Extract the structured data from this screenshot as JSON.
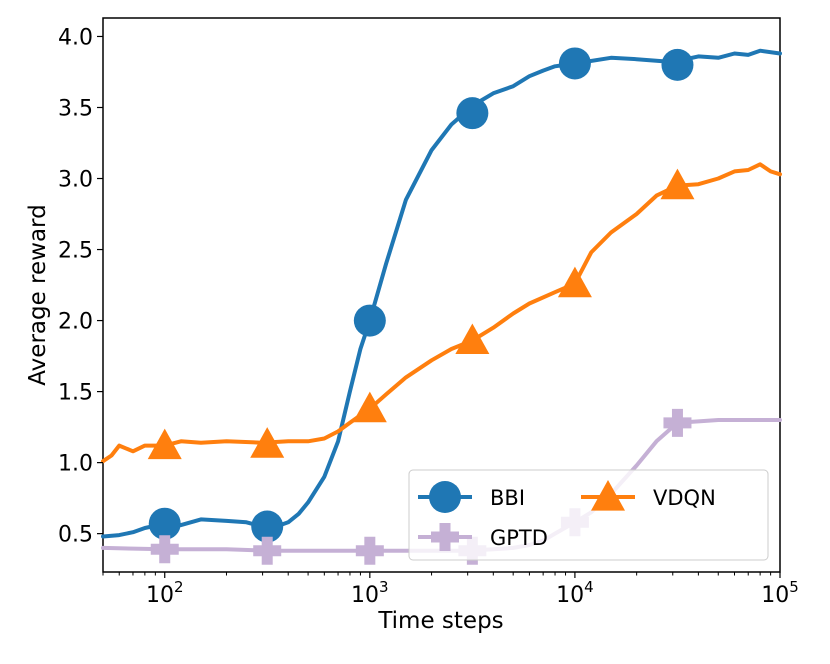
{
  "chart_data": {
    "type": "line",
    "xscale": "log",
    "xlabel": "Time steps",
    "ylabel": "Average reward",
    "xlim": [
      50,
      100000
    ],
    "ylim": [
      0.23,
      4.13
    ],
    "x_ticks": [
      {
        "value": 100,
        "base": "10",
        "exp": "2"
      },
      {
        "value": 1000,
        "base": "10",
        "exp": "3"
      },
      {
        "value": 10000,
        "base": "10",
        "exp": "4"
      },
      {
        "value": 100000,
        "base": "10",
        "exp": "5"
      }
    ],
    "y_ticks": [
      {
        "value": 0.5,
        "label": "0.5"
      },
      {
        "value": 1.0,
        "label": "1.0"
      },
      {
        "value": 1.5,
        "label": "1.5"
      },
      {
        "value": 2.0,
        "label": "2.0"
      },
      {
        "value": 2.5,
        "label": "2.5"
      },
      {
        "value": 3.0,
        "label": "3.0"
      },
      {
        "value": 3.5,
        "label": "3.5"
      },
      {
        "value": 4.0,
        "label": "4.0"
      }
    ],
    "legend_position": "bottom-right",
    "series": [
      {
        "name": "BBI",
        "color": "#1f77b4",
        "marker": "circle",
        "x": [
          50,
          60,
          70,
          80,
          100,
          120,
          150,
          200,
          250,
          300,
          350,
          400,
          450,
          500,
          600,
          700,
          800,
          900,
          1000,
          1200,
          1500,
          2000,
          2500,
          3000,
          3500,
          4000,
          5000,
          6000,
          7000,
          8000,
          10000,
          15000,
          20000,
          30000,
          40000,
          50000,
          60000,
          70000,
          80000,
          100000
        ],
        "y": [
          0.48,
          0.49,
          0.51,
          0.54,
          0.57,
          0.56,
          0.6,
          0.59,
          0.58,
          0.55,
          0.55,
          0.58,
          0.64,
          0.72,
          0.9,
          1.15,
          1.5,
          1.8,
          2.0,
          2.4,
          2.85,
          3.2,
          3.38,
          3.48,
          3.55,
          3.6,
          3.65,
          3.72,
          3.76,
          3.79,
          3.81,
          3.85,
          3.84,
          3.82,
          3.86,
          3.85,
          3.88,
          3.87,
          3.9,
          3.88
        ],
        "markers_x": [
          100,
          316,
          1000,
          3162,
          10000,
          31623
        ],
        "markers_y": [
          0.57,
          0.55,
          2.0,
          3.46,
          3.81,
          3.8
        ]
      },
      {
        "name": "GPTD",
        "color": "#c5b0d5",
        "marker": "plus",
        "x": [
          50,
          100,
          200,
          316,
          500,
          1000,
          2000,
          3000,
          4000,
          5000,
          6000,
          7000,
          8000,
          10000,
          12000,
          15000,
          20000,
          25000,
          31623,
          40000,
          50000,
          70000,
          100000
        ],
        "y": [
          0.4,
          0.39,
          0.39,
          0.38,
          0.38,
          0.38,
          0.38,
          0.38,
          0.39,
          0.4,
          0.42,
          0.45,
          0.5,
          0.58,
          0.65,
          0.78,
          0.98,
          1.15,
          1.28,
          1.29,
          1.3,
          1.3,
          1.3
        ],
        "markers_x": [
          100,
          316,
          1000,
          3162,
          10000,
          31623
        ],
        "markers_y": [
          0.39,
          0.38,
          0.38,
          0.38,
          0.58,
          1.28
        ]
      },
      {
        "name": "VDQN",
        "color": "#ff7f0e",
        "marker": "triangle",
        "x": [
          50,
          55,
          60,
          70,
          80,
          100,
          120,
          150,
          200,
          300,
          400,
          500,
          600,
          700,
          800,
          1000,
          1200,
          1500,
          2000,
          2500,
          3162,
          4000,
          5000,
          6000,
          8000,
          10000,
          12000,
          15000,
          20000,
          25000,
          31623,
          40000,
          50000,
          60000,
          70000,
          80000,
          90000,
          100000
        ],
        "y": [
          1.01,
          1.05,
          1.12,
          1.08,
          1.12,
          1.12,
          1.15,
          1.14,
          1.15,
          1.14,
          1.15,
          1.15,
          1.17,
          1.22,
          1.28,
          1.38,
          1.48,
          1.6,
          1.72,
          1.8,
          1.86,
          1.95,
          2.05,
          2.12,
          2.2,
          2.26,
          2.48,
          2.62,
          2.75,
          2.88,
          2.95,
          2.96,
          3.0,
          3.05,
          3.06,
          3.1,
          3.05,
          3.03
        ],
        "markers_x": [
          100,
          316,
          1000,
          3162,
          10000,
          31623
        ],
        "markers_y": [
          1.12,
          1.13,
          1.38,
          1.86,
          2.26,
          2.95
        ]
      }
    ]
  }
}
